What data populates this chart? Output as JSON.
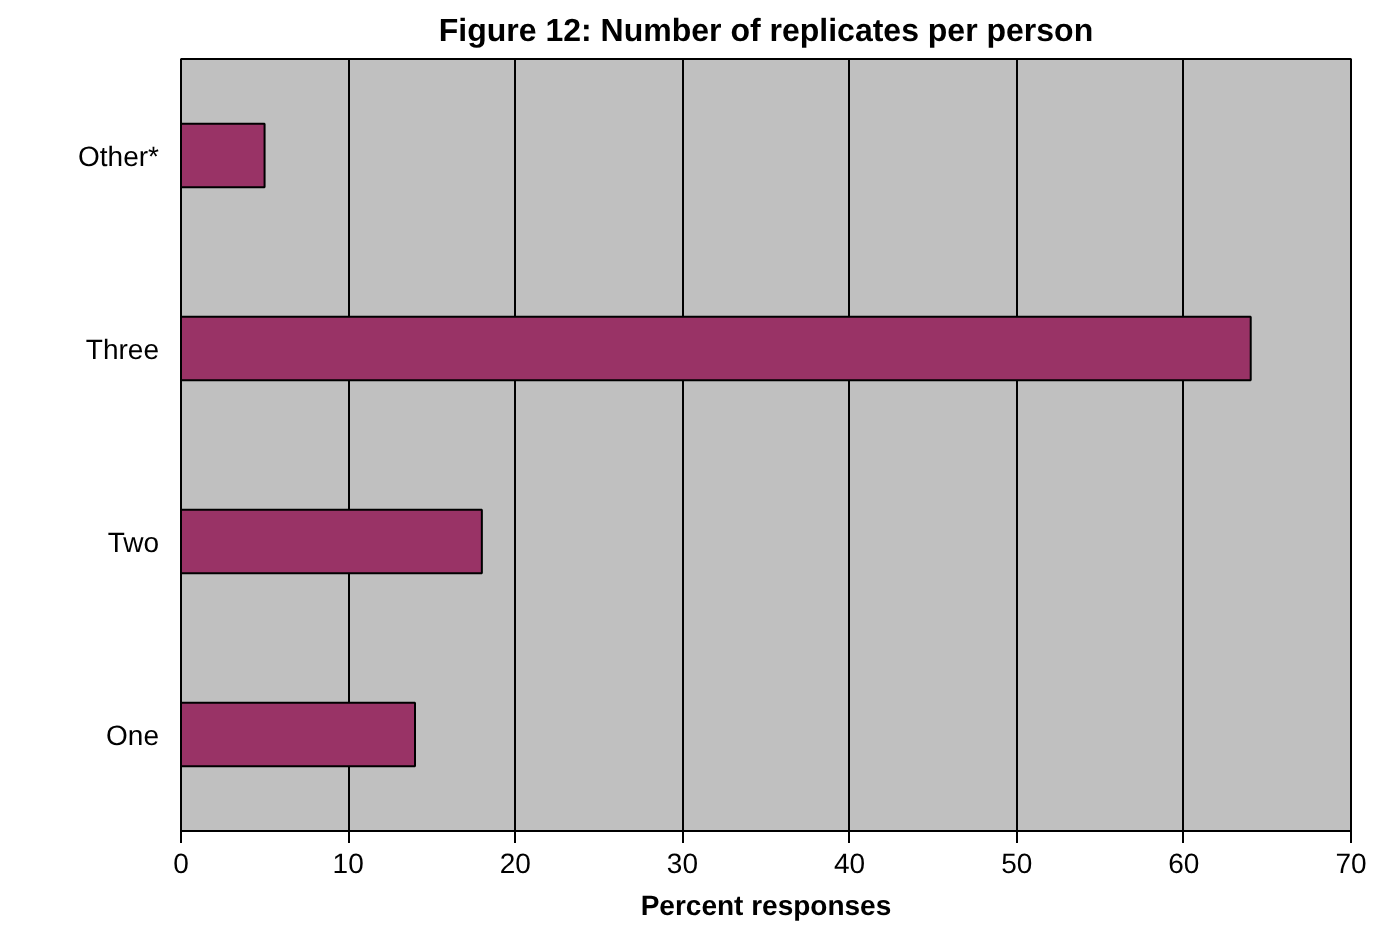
{
  "chart_data": {
    "type": "bar",
    "orientation": "horizontal",
    "title": "Figure 12: Number of replicates per person",
    "xlabel": "Percent responses",
    "categories": [
      "Other*",
      "Three",
      "Two",
      "One"
    ],
    "values": [
      5,
      64,
      18,
      14
    ],
    "color": "#993366",
    "xlim": [
      0,
      70
    ],
    "xticks": [
      0,
      10,
      20,
      30,
      40,
      50,
      60,
      70
    ],
    "grid": "x"
  }
}
